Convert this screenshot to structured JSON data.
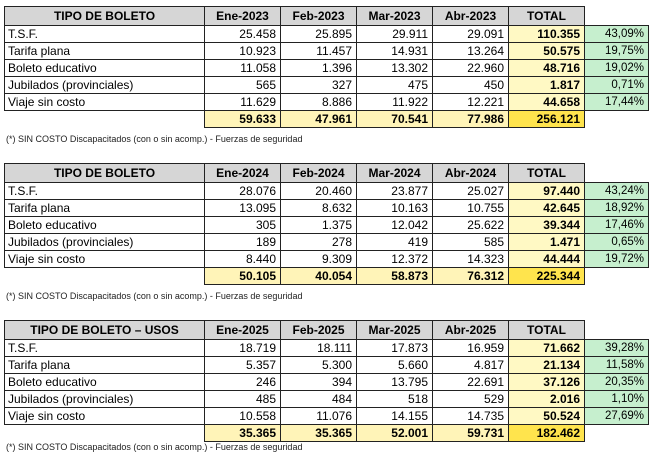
{
  "tables": [
    {
      "headers": [
        "TIPO DE BOLETO",
        "Ene-2023",
        "Feb-2023",
        "Mar-2023",
        "Abr-2023",
        "TOTAL"
      ],
      "rows": [
        {
          "label": "T.S.F.",
          "v": [
            "25.458",
            "25.895",
            "29.911",
            "29.091"
          ],
          "total": "110.355",
          "pct": "43,09%"
        },
        {
          "label": "Tarifa plana",
          "v": [
            "10.923",
            "11.457",
            "14.931",
            "13.264"
          ],
          "total": "50.575",
          "pct": "19,75%"
        },
        {
          "label": "Boleto educativo",
          "v": [
            "11.058",
            "1.396",
            "13.302",
            "22.960"
          ],
          "total": "48.716",
          "pct": "19,02%"
        },
        {
          "label": "Jubilados (provinciales)",
          "v": [
            "565",
            "327",
            "475",
            "450"
          ],
          "total": "1.817",
          "pct": "0,71%"
        },
        {
          "label": "Viaje sin costo",
          "v": [
            "11.629",
            "8.886",
            "11.922",
            "12.221"
          ],
          "total": "44.658",
          "pct": "17,44%"
        }
      ],
      "sums": [
        "59.633",
        "47.961",
        "70.541",
        "77.986"
      ],
      "grand_total": "256.121",
      "note": "(*) SIN COSTO Discapacitados (con o sin acomp.) - Fuerzas de seguridad"
    },
    {
      "headers": [
        "TIPO DE BOLETO",
        "Ene-2024",
        "Feb-2024",
        "Mar-2024",
        "Abr-2024",
        "TOTAL"
      ],
      "rows": [
        {
          "label": "T.S.F.",
          "v": [
            "28.076",
            "20.460",
            "23.877",
            "25.027"
          ],
          "total": "97.440",
          "pct": "43,24%"
        },
        {
          "label": "Tarifa plana",
          "v": [
            "13.095",
            "8.632",
            "10.163",
            "10.755"
          ],
          "total": "42.645",
          "pct": "18,92%"
        },
        {
          "label": "Boleto educativo",
          "v": [
            "305",
            "1.375",
            "12.042",
            "25.622"
          ],
          "total": "39.344",
          "pct": "17,46%"
        },
        {
          "label": "Jubilados (provinciales)",
          "v": [
            "189",
            "278",
            "419",
            "585"
          ],
          "total": "1.471",
          "pct": "0,65%"
        },
        {
          "label": "Viaje sin costo",
          "v": [
            "8.440",
            "9.309",
            "12.372",
            "14.323"
          ],
          "total": "44.444",
          "pct": "19,72%"
        }
      ],
      "sums": [
        "50.105",
        "40.054",
        "58.873",
        "76.312"
      ],
      "grand_total": "225.344",
      "note": "(*) SIN COSTO Discapacitados (con o sin acomp.) - Fuerzas de seguridad"
    },
    {
      "headers": [
        "TIPO DE BOLETO – USOS",
        "Ene-2025",
        "Feb-2025",
        "Mar-2025",
        "Abr-2025",
        "TOTAL"
      ],
      "rows": [
        {
          "label": "T.S.F.",
          "v": [
            "18.719",
            "18.111",
            "17.873",
            "16.959"
          ],
          "total": "71.662",
          "pct": "39,28%"
        },
        {
          "label": "Tarifa plana",
          "v": [
            "5.357",
            "5.300",
            "5.660",
            "4.817"
          ],
          "total": "21.134",
          "pct": "11,58%"
        },
        {
          "label": "Boleto educativo",
          "v": [
            "246",
            "394",
            "13.795",
            "22.691"
          ],
          "total": "37.126",
          "pct": "20,35%"
        },
        {
          "label": "Jubilados (provinciales)",
          "v": [
            "485",
            "484",
            "518",
            "529"
          ],
          "total": "2.016",
          "pct": "1,10%"
        },
        {
          "label": "Viaje sin costo",
          "v": [
            "10.558",
            "11.076",
            "14.155",
            "14.735"
          ],
          "total": "50.524",
          "pct": "27,69%"
        }
      ],
      "sums": [
        "35.365",
        "35.365",
        "52.001",
        "59.731"
      ],
      "grand_total": "182.462",
      "note": "(*) SIN COSTO Discapacitados (con o sin acomp.) - Fuerzas de seguridad"
    }
  ]
}
